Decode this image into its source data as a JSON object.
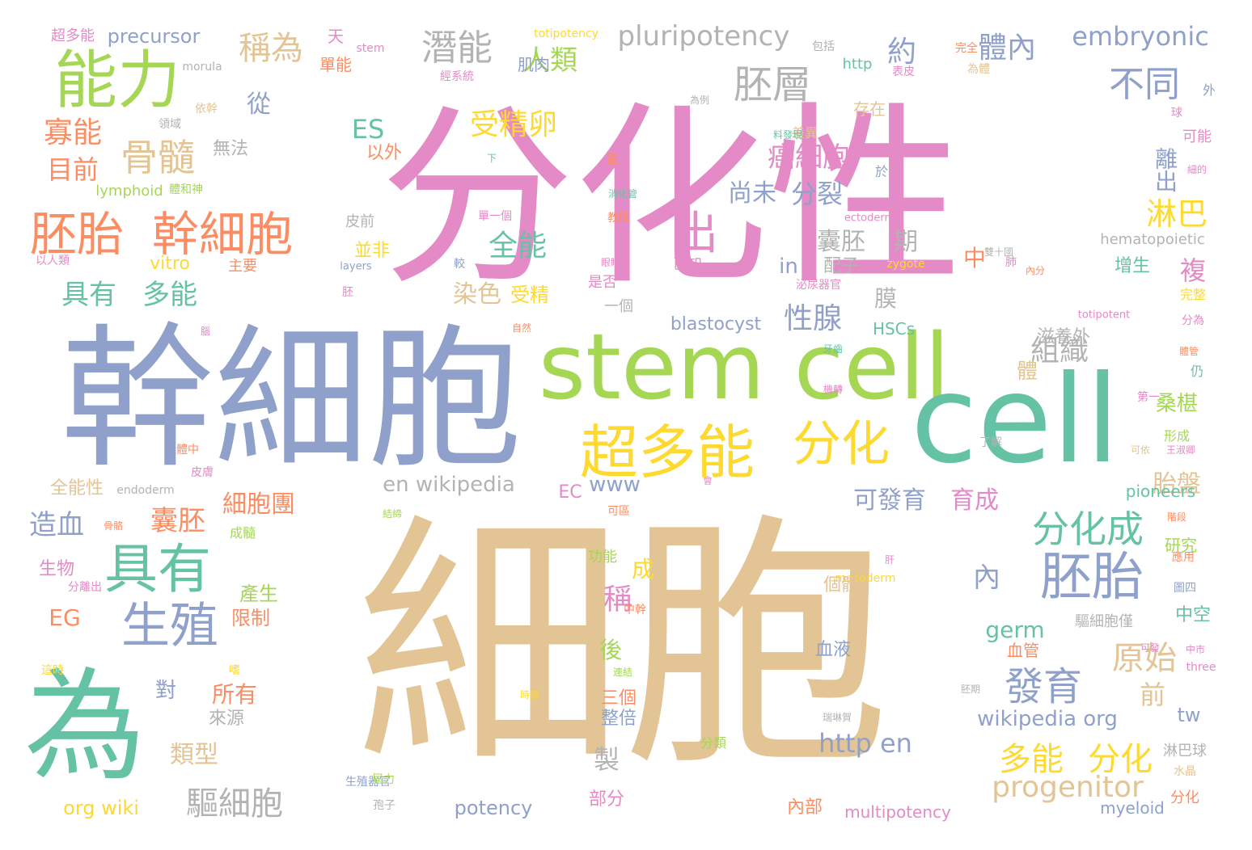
{
  "palette": {
    "pink": "#e48ac6",
    "periwinkle": "#8fa1cb",
    "tan": "#e3c495",
    "lime": "#a5d755",
    "teal": "#66c2a5",
    "yellow": "#fed930",
    "orange": "#fc8d62",
    "gray": "#b3b3b3"
  },
  "words": [
    {
      "text": "分化性",
      "color": "pink"
    },
    {
      "text": "細胞",
      "color": "tan"
    },
    {
      "text": "幹細胞",
      "color": "periwinkle"
    },
    {
      "text": "stem cell",
      "color": "lime"
    },
    {
      "text": "cell",
      "color": "teal"
    },
    {
      "text": "為",
      "color": "teal"
    },
    {
      "text": "能力",
      "color": "lime"
    },
    {
      "text": "胚胎",
      "color": "orange"
    },
    {
      "text": "幹細胞",
      "color": "orange"
    },
    {
      "text": "具有",
      "color": "teal"
    },
    {
      "text": "生殖",
      "color": "periwinkle"
    },
    {
      "text": "出",
      "color": "pink"
    },
    {
      "text": "超多能",
      "color": "yellow"
    },
    {
      "text": "分化",
      "color": "yellow"
    },
    {
      "text": "胚胎",
      "color": "periwinkle"
    },
    {
      "text": "胚層",
      "color": "gray"
    },
    {
      "text": "潛能",
      "color": "gray"
    },
    {
      "text": "pluripotency",
      "color": "gray"
    },
    {
      "text": "embryonic",
      "color": "periwinkle"
    },
    {
      "text": "骨髓",
      "color": "tan"
    },
    {
      "text": "不同",
      "color": "periwinkle"
    },
    {
      "text": "分化成",
      "color": "teal"
    },
    {
      "text": "發育",
      "color": "periwinkle"
    },
    {
      "text": "多能",
      "color": "yellow"
    },
    {
      "text": "分化",
      "color": "yellow"
    },
    {
      "text": "progenitor",
      "color": "tan"
    },
    {
      "text": "驅細胞",
      "color": "gray"
    },
    {
      "text": "http en",
      "color": "periwinkle"
    },
    {
      "text": "wikipedia org",
      "color": "periwinkle"
    },
    {
      "text": "en wikipedia",
      "color": "gray"
    },
    {
      "text": "稱為",
      "color": "tan"
    },
    {
      "text": "人類",
      "color": "lime"
    },
    {
      "text": "受精卵",
      "color": "yellow"
    },
    {
      "text": "寡能",
      "color": "orange"
    },
    {
      "text": "目前",
      "color": "orange"
    },
    {
      "text": "具有",
      "color": "teal"
    },
    {
      "text": "多能",
      "color": "teal"
    },
    {
      "text": "全能",
      "color": "teal"
    },
    {
      "text": "癌細胞",
      "color": "pink"
    },
    {
      "text": "分裂",
      "color": "periwinkle"
    },
    {
      "text": "尚未",
      "color": "periwinkle"
    },
    {
      "text": "囊胚",
      "color": "gray"
    },
    {
      "text": "期",
      "color": "gray"
    },
    {
      "text": "淋巴",
      "color": "yellow"
    },
    {
      "text": "離出",
      "color": "periwinkle"
    },
    {
      "text": "組織",
      "color": "gray"
    },
    {
      "text": "性腺",
      "color": "periwinkle"
    },
    {
      "text": "體內",
      "color": "periwinkle"
    },
    {
      "text": "約",
      "color": "periwinkle"
    },
    {
      "text": "ES",
      "color": "teal"
    },
    {
      "text": "從",
      "color": "periwinkle"
    },
    {
      "text": "造血",
      "color": "periwinkle"
    },
    {
      "text": "囊胚",
      "color": "orange"
    },
    {
      "text": "細胞團",
      "color": "orange"
    },
    {
      "text": "可發育",
      "color": "periwinkle"
    },
    {
      "text": "育成",
      "color": "pink"
    },
    {
      "text": "內",
      "color": "periwinkle"
    },
    {
      "text": "原始",
      "color": "tan"
    },
    {
      "text": "染色",
      "color": "tan"
    },
    {
      "text": "受精",
      "color": "yellow"
    },
    {
      "text": "www",
      "color": "periwinkle"
    },
    {
      "text": "germ",
      "color": "teal"
    },
    {
      "text": "EG",
      "color": "orange"
    },
    {
      "text": "稱",
      "color": "pink"
    },
    {
      "text": "成",
      "color": "yellow"
    },
    {
      "text": "對",
      "color": "periwinkle"
    },
    {
      "text": "所有",
      "color": "orange"
    },
    {
      "text": "類型",
      "color": "tan"
    },
    {
      "text": "後",
      "color": "lime"
    },
    {
      "text": "前",
      "color": "tan"
    },
    {
      "text": "tw",
      "color": "periwinkle"
    },
    {
      "text": "胎盤",
      "color": "tan"
    },
    {
      "text": "桑椹",
      "color": "lime"
    },
    {
      "text": "複",
      "color": "pink"
    },
    {
      "text": "中",
      "color": "orange"
    },
    {
      "text": "膜",
      "color": "gray"
    },
    {
      "text": "in",
      "color": "periwinkle"
    },
    {
      "text": "配子",
      "color": "gray"
    },
    {
      "text": "org wiki",
      "color": "yellow"
    },
    {
      "text": "potency",
      "color": "periwinkle"
    },
    {
      "text": "multipotency",
      "color": "pink"
    },
    {
      "text": "myeloid",
      "color": "periwinkle"
    },
    {
      "text": "製",
      "color": "gray"
    },
    {
      "text": "體",
      "color": "tan"
    },
    {
      "text": "precursor",
      "color": "periwinkle"
    },
    {
      "text": "超多能",
      "color": "pink"
    },
    {
      "text": "lymphoid",
      "color": "lime"
    },
    {
      "text": "vitro",
      "color": "yellow"
    },
    {
      "text": "blastocyst",
      "color": "periwinkle"
    },
    {
      "text": "HSCs",
      "color": "teal"
    },
    {
      "text": "hematopoietic",
      "color": "gray"
    },
    {
      "text": "pioneers",
      "color": "teal"
    },
    {
      "text": "EC",
      "color": "pink"
    },
    {
      "text": "totipotency",
      "color": "yellow"
    },
    {
      "text": "morula",
      "color": "gray"
    },
    {
      "text": "stem",
      "color": "pink"
    },
    {
      "text": "http",
      "color": "teal"
    },
    {
      "text": "ectoderm",
      "color": "pink"
    },
    {
      "text": "zygote",
      "color": "yellow"
    },
    {
      "text": "layers",
      "color": "periwinkle"
    },
    {
      "text": "endoderm",
      "color": "gray"
    },
    {
      "text": "mesoderm",
      "color": "yellow"
    },
    {
      "text": "totipotent",
      "color": "pink"
    },
    {
      "text": "three",
      "color": "pink"
    },
    {
      "text": "全能性",
      "color": "tan"
    },
    {
      "text": "生物",
      "color": "pink"
    },
    {
      "text": "無法",
      "color": "gray"
    },
    {
      "text": "以外",
      "color": "orange"
    },
    {
      "text": "產生",
      "color": "lime"
    },
    {
      "text": "限制",
      "color": "orange"
    },
    {
      "text": "來源",
      "color": "gray"
    },
    {
      "text": "三個",
      "color": "orange"
    },
    {
      "text": "整倍",
      "color": "periwinkle"
    },
    {
      "text": "部分",
      "color": "pink"
    },
    {
      "text": "內部",
      "color": "orange"
    },
    {
      "text": "滋養外",
      "color": "gray"
    },
    {
      "text": "淋巴球",
      "color": "gray"
    },
    {
      "text": "水晶",
      "color": "tan"
    },
    {
      "text": "血管",
      "color": "orange"
    },
    {
      "text": "驅細胞僅",
      "color": "gray"
    },
    {
      "text": "血液",
      "color": "periwinkle"
    },
    {
      "text": "個體",
      "color": "tan"
    },
    {
      "text": "中空",
      "color": "teal"
    },
    {
      "text": "研究",
      "color": "lime"
    },
    {
      "text": "增生",
      "color": "teal"
    },
    {
      "text": "完整",
      "color": "yellow"
    },
    {
      "text": "一個",
      "color": "gray"
    },
    {
      "text": "已知",
      "color": "pink"
    },
    {
      "text": "是否",
      "color": "pink"
    },
    {
      "text": "並非",
      "color": "yellow"
    },
    {
      "text": "主要",
      "color": "orange"
    },
    {
      "text": "皮前",
      "color": "gray"
    },
    {
      "text": "差異",
      "color": "tan"
    },
    {
      "text": "存在",
      "color": "tan"
    },
    {
      "text": "肌肉",
      "color": "periwinkle"
    },
    {
      "text": "單能",
      "color": "orange"
    },
    {
      "text": "天",
      "color": "pink"
    },
    {
      "text": "可能",
      "color": "pink"
    },
    {
      "text": "形成",
      "color": "lime"
    },
    {
      "text": "仍",
      "color": "teal"
    },
    {
      "text": "分化",
      "color": "orange"
    },
    {
      "text": "於",
      "color": "periwinkle"
    },
    {
      "text": "外",
      "color": "periwinkle"
    },
    {
      "text": "球",
      "color": "pink"
    },
    {
      "text": "功能",
      "color": "lime"
    },
    {
      "text": "成髓",
      "color": "lime"
    },
    {
      "text": "包括",
      "color": "gray"
    },
    {
      "text": "完全",
      "color": "orange"
    },
    {
      "text": "為體",
      "color": "tan"
    },
    {
      "text": "表皮",
      "color": "pink"
    },
    {
      "text": "經系統",
      "color": "pink"
    },
    {
      "text": "為例",
      "color": "gray"
    },
    {
      "text": "依幹",
      "color": "tan"
    },
    {
      "text": "領域",
      "color": "gray"
    },
    {
      "text": "體和神",
      "color": "lime"
    },
    {
      "text": "以人類",
      "color": "pink"
    },
    {
      "text": "消化管",
      "color": "teal"
    },
    {
      "text": "單一個",
      "color": "pink"
    },
    {
      "text": "教師",
      "color": "orange"
    },
    {
      "text": "泌尿器官",
      "color": "pink"
    },
    {
      "text": "生殖器官",
      "color": "periwinkle"
    },
    {
      "text": "孢子",
      "color": "gray"
    },
    {
      "text": "雙十國",
      "color": "gray"
    },
    {
      "text": "可區",
      "color": "orange"
    },
    {
      "text": "骨骼",
      "color": "orange"
    },
    {
      "text": "體中",
      "color": "orange"
    },
    {
      "text": "皮膚",
      "color": "pink"
    },
    {
      "text": "了解",
      "color": "gray"
    },
    {
      "text": "可依",
      "color": "tan"
    },
    {
      "text": "王淑卿",
      "color": "pink"
    },
    {
      "text": "第一",
      "color": "pink"
    },
    {
      "text": "體管",
      "color": "orange"
    },
    {
      "text": "分為",
      "color": "pink"
    },
    {
      "text": "圖四",
      "color": "periwinkle"
    },
    {
      "text": "應用",
      "color": "orange"
    },
    {
      "text": "階段",
      "color": "orange"
    },
    {
      "text": "可發",
      "color": "pink"
    },
    {
      "text": "胚期",
      "color": "gray"
    },
    {
      "text": "中市",
      "color": "pink"
    },
    {
      "text": "肝",
      "color": "pink"
    },
    {
      "text": "較",
      "color": "periwinkle"
    },
    {
      "text": "胚",
      "color": "pink"
    },
    {
      "text": "肺",
      "color": "pink"
    },
    {
      "text": "內分",
      "color": "orange"
    },
    {
      "text": "眼睛",
      "color": "pink"
    },
    {
      "text": "牙齒",
      "color": "teal"
    },
    {
      "text": "機轉",
      "color": "pink"
    },
    {
      "text": "自然",
      "color": "orange"
    },
    {
      "text": "中幹",
      "color": "orange"
    },
    {
      "text": "連結",
      "color": "lime"
    },
    {
      "text": "時期",
      "color": "yellow"
    },
    {
      "text": "會",
      "color": "pink"
    },
    {
      "text": "分類",
      "color": "lime"
    },
    {
      "text": "瑞琳賀",
      "color": "gray"
    },
    {
      "text": "屆力",
      "color": "lime"
    },
    {
      "text": "結締",
      "color": "lime"
    },
    {
      "text": "量",
      "color": "orange"
    },
    {
      "text": "下",
      "color": "teal"
    },
    {
      "text": "腦",
      "color": "pink"
    },
    {
      "text": "料發現",
      "color": "teal"
    },
    {
      "text": "細的",
      "color": "pink"
    },
    {
      "text": "分離出",
      "color": "pink"
    },
    {
      "text": "這時",
      "color": "yellow"
    },
    {
      "text": "嗜",
      "color": "yellow"
    }
  ]
}
